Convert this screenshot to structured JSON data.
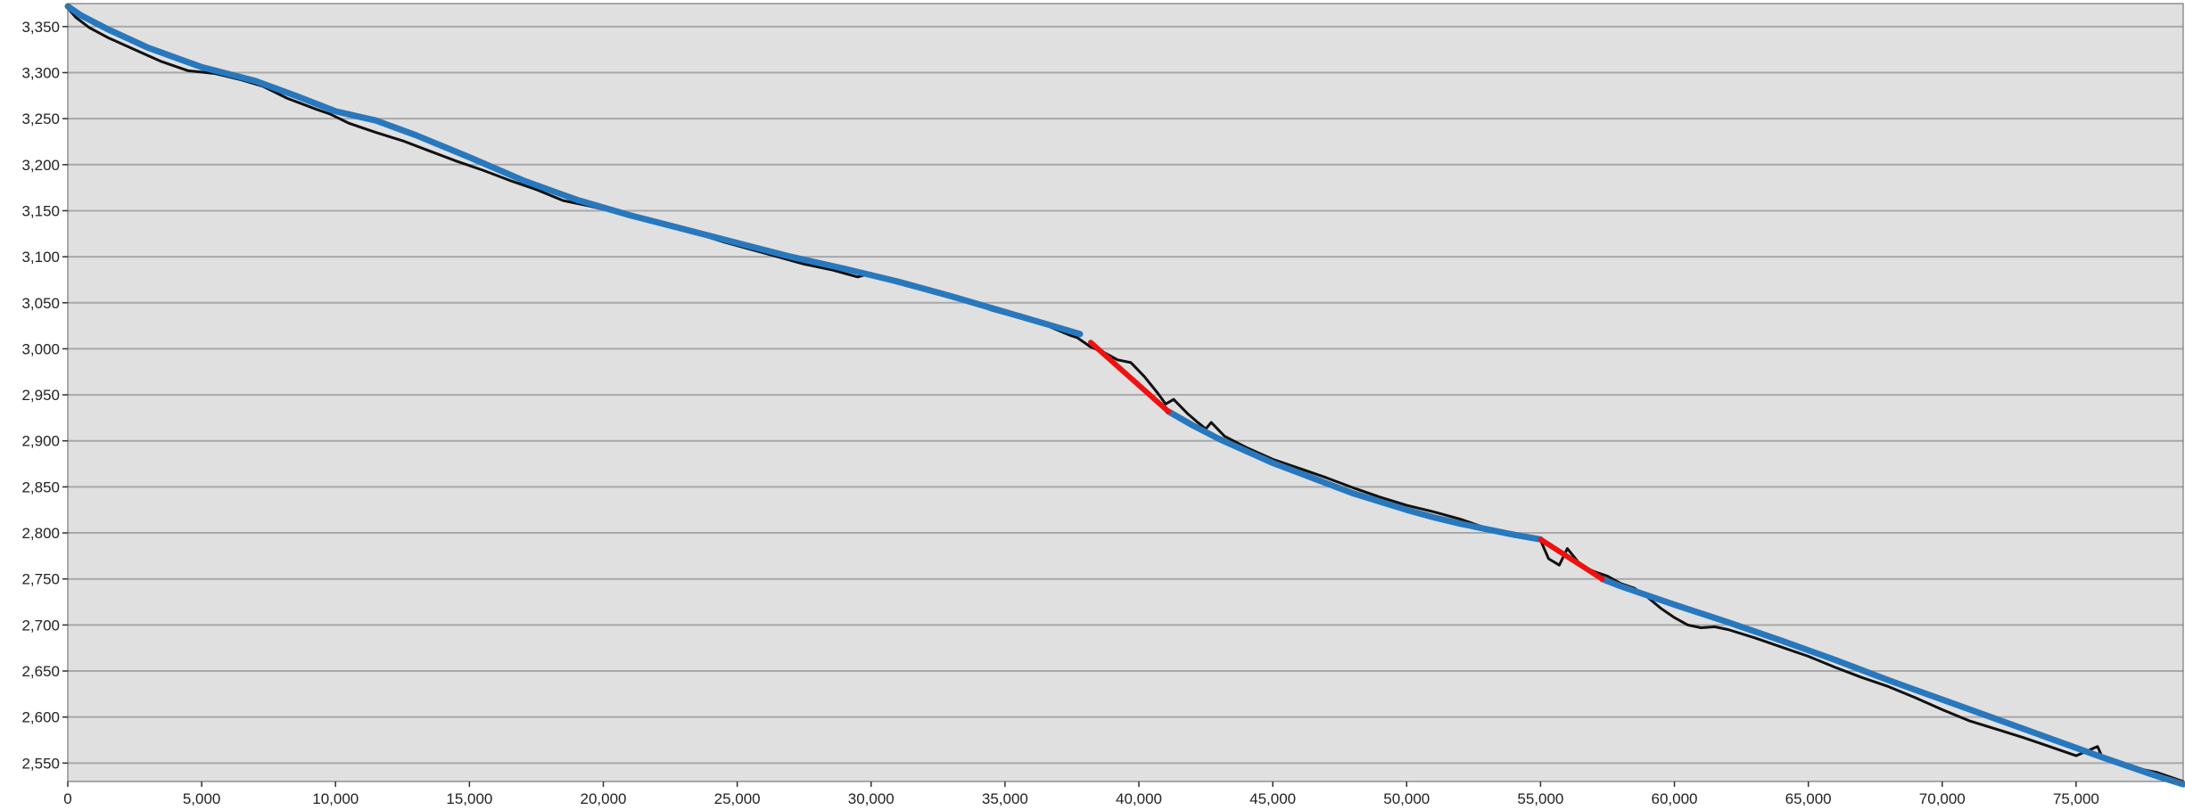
{
  "chart_data": {
    "type": "line",
    "title": "",
    "xlabel": "",
    "ylabel": "",
    "xlim": [
      0,
      79000
    ],
    "ylim": [
      2530,
      3375
    ],
    "grid": true,
    "x_ticks": [
      0,
      5000,
      10000,
      15000,
      20000,
      25000,
      30000,
      35000,
      40000,
      45000,
      50000,
      55000,
      60000,
      65000,
      70000,
      75000
    ],
    "x_tick_labels": [
      "0",
      "5,000",
      "10,000",
      "15,000",
      "20,000",
      "25,000",
      "30,000",
      "35,000",
      "40,000",
      "45,000",
      "50,000",
      "55,000",
      "60,000",
      "65,000",
      "70,000",
      "75,000"
    ],
    "y_ticks": [
      2550,
      2600,
      2650,
      2700,
      2750,
      2800,
      2850,
      2900,
      2950,
      3000,
      3050,
      3100,
      3150,
      3200,
      3250,
      3300,
      3350
    ],
    "y_tick_labels": [
      "2,550",
      "2,600",
      "2,650",
      "2,700",
      "2,750",
      "2,800",
      "2,850",
      "2,900",
      "2,950",
      "3,000",
      "3,050",
      "3,100",
      "3,150",
      "3,200",
      "3,250",
      "3,300",
      "3,350"
    ],
    "colors": {
      "plot_background": "#e0e0e0",
      "gridline": "#a8a8a8",
      "raw": "#111111",
      "fit": "#2878be",
      "segment": "#ee1111"
    },
    "series": [
      {
        "role": "raw",
        "x": [
          0,
          300,
          800,
          1500,
          2500,
          3500,
          4500,
          5500,
          6500,
          7300,
          8200,
          9300,
          9800,
          10500,
          11500,
          12500,
          13500,
          14500,
          15500,
          16500,
          17500,
          18500,
          19500,
          20500,
          21500,
          22500,
          23500,
          24500,
          25500,
          26500,
          27500,
          28500,
          29500,
          30000,
          30500,
          31500,
          32500,
          33500,
          34500,
          35500,
          36500,
          37400,
          37700,
          38200,
          38700,
          39200,
          39700,
          40200,
          40700,
          41000,
          41300,
          41800,
          42200,
          42500,
          42700,
          43200,
          44000,
          45000,
          46000,
          47000,
          48000,
          49000,
          50000,
          51000,
          52000,
          53000,
          54000,
          55000,
          55300,
          55700,
          56000,
          56500,
          57000,
          57500,
          58000,
          58500,
          59000,
          59500,
          60000,
          60500,
          61000,
          61500,
          62000,
          63000,
          64000,
          65000,
          66000,
          67000,
          68000,
          69000,
          70000,
          71000,
          72000,
          73000,
          74000,
          75000,
          75800,
          76000,
          76500,
          77000,
          77500,
          78000,
          78500,
          79000
        ],
        "y": [
          3370,
          3360,
          3349,
          3338,
          3325,
          3312,
          3302,
          3299,
          3292,
          3285,
          3272,
          3260,
          3255,
          3245,
          3235,
          3226,
          3215,
          3204,
          3194,
          3183,
          3173,
          3161,
          3155,
          3148,
          3140,
          3134,
          3125,
          3116,
          3108,
          3100,
          3092,
          3086,
          3078,
          3082,
          3075,
          3067,
          3060,
          3052,
          3042,
          3034,
          3026,
          3015,
          3012,
          3002,
          2996,
          2988,
          2985,
          2970,
          2952,
          2940,
          2945,
          2930,
          2920,
          2913,
          2920,
          2905,
          2893,
          2880,
          2870,
          2860,
          2849,
          2839,
          2830,
          2823,
          2815,
          2805,
          2800,
          2792,
          2772,
          2765,
          2783,
          2765,
          2758,
          2753,
          2745,
          2740,
          2730,
          2718,
          2708,
          2700,
          2697,
          2698,
          2695,
          2686,
          2676,
          2666,
          2654,
          2643,
          2633,
          2621,
          2608,
          2596,
          2587,
          2578,
          2568,
          2558,
          2568,
          2555,
          2551,
          2548,
          2543,
          2540,
          2535,
          2530
        ]
      },
      {
        "role": "fit",
        "x": [
          0,
          500,
          1500,
          3000,
          5000,
          7000,
          8500,
          10000,
          11500,
          13000,
          15000,
          17000,
          19000,
          21000,
          23000,
          25000,
          27000,
          29000,
          31000,
          33000,
          35000,
          37000,
          37800
        ],
        "y": [
          3372,
          3362,
          3347,
          3327,
          3306,
          3291,
          3275,
          3258,
          3248,
          3232,
          3208,
          3183,
          3162,
          3145,
          3130,
          3115,
          3100,
          3087,
          3073,
          3057,
          3040,
          3023,
          3016
        ]
      },
      {
        "role": "segment",
        "x": [
          38200,
          41100
        ],
        "y": [
          3007,
          2932
        ]
      },
      {
        "role": "fit",
        "x": [
          41100,
          42000,
          43000,
          44000,
          45000,
          46000,
          47000,
          48000,
          49000,
          50000,
          51000,
          52000,
          53000,
          54000,
          55000
        ],
        "y": [
          2932,
          2917,
          2902,
          2889,
          2876,
          2865,
          2854,
          2843,
          2834,
          2825,
          2817,
          2810,
          2804,
          2798,
          2793
        ]
      },
      {
        "role": "segment",
        "x": [
          55000,
          57300
        ],
        "y": [
          2793,
          2750
        ]
      },
      {
        "role": "fit",
        "x": [
          57300,
          58000,
          60000,
          62000,
          64000,
          66000,
          68000,
          70000,
          72000,
          74000,
          76000,
          78000,
          79000
        ],
        "y": [
          2750,
          2742,
          2722,
          2703,
          2683,
          2662,
          2640,
          2619,
          2598,
          2577,
          2556,
          2536,
          2527
        ]
      }
    ]
  }
}
